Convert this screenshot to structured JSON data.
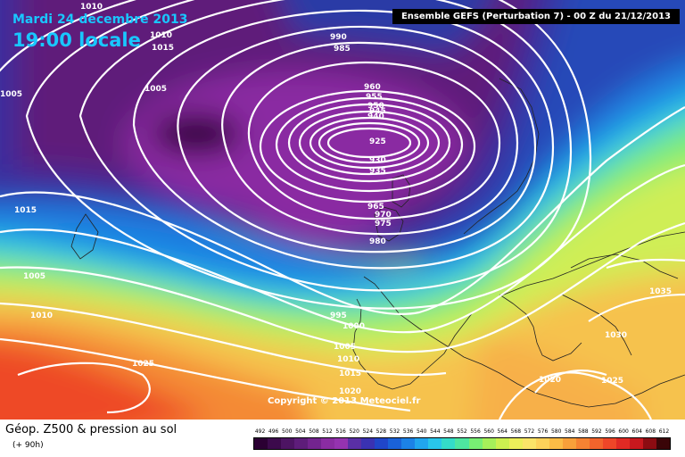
{
  "header": {
    "date": "Mardi 24 decembre 2013",
    "time": "19:00 locale",
    "run": "Ensemble GEFS (Perturbation 7) - 00 Z du 21/12/2013"
  },
  "footer": {
    "title": "Géop. Z500 & pression au sol",
    "subtitle": "(+ 90h)",
    "copyright": "Copyright © 2013 Meteociel.fr"
  },
  "scale": {
    "values": [
      "492",
      "496",
      "500",
      "504",
      "508",
      "512",
      "516",
      "520",
      "524",
      "528",
      "532",
      "536",
      "540",
      "544",
      "548",
      "552",
      "556",
      "560",
      "564",
      "568",
      "572",
      "576",
      "580",
      "584",
      "588",
      "592",
      "596",
      "600",
      "604",
      "608",
      "612"
    ],
    "colors": [
      "#2b0033",
      "#3c0a4c",
      "#4d1463",
      "#5e1d7a",
      "#73248f",
      "#8a2ca2",
      "#9533b0",
      "#5a2fa6",
      "#3a32b2",
      "#2046c8",
      "#1a62d8",
      "#1c82e6",
      "#21a6ee",
      "#29c6ea",
      "#34dcc8",
      "#4ee6a0",
      "#78ee74",
      "#a6f05a",
      "#cdf050",
      "#ecee5a",
      "#fbe468",
      "#fdd25a",
      "#fcbc46",
      "#f8a03a",
      "#f58232",
      "#f2642c",
      "#ee4628",
      "#e02a24",
      "#c8181e",
      "#8c0c12",
      "#3a0508"
    ]
  },
  "pressure_labels": [
    "1010",
    "1010",
    "1015",
    "990",
    "985",
    "1005",
    "960",
    "955",
    "950",
    "945",
    "940",
    "925",
    "930",
    "935",
    "965",
    "970",
    "975",
    "980",
    "1015",
    "1005",
    "1010",
    "995",
    "1000",
    "1005",
    "1010",
    "1015",
    "1020",
    "1025",
    "1020",
    "1025",
    "1030",
    "1035",
    "1005"
  ],
  "colors": {
    "title": "#19c7ff",
    "isobar": "#ffffff",
    "run_box": "#000000"
  }
}
